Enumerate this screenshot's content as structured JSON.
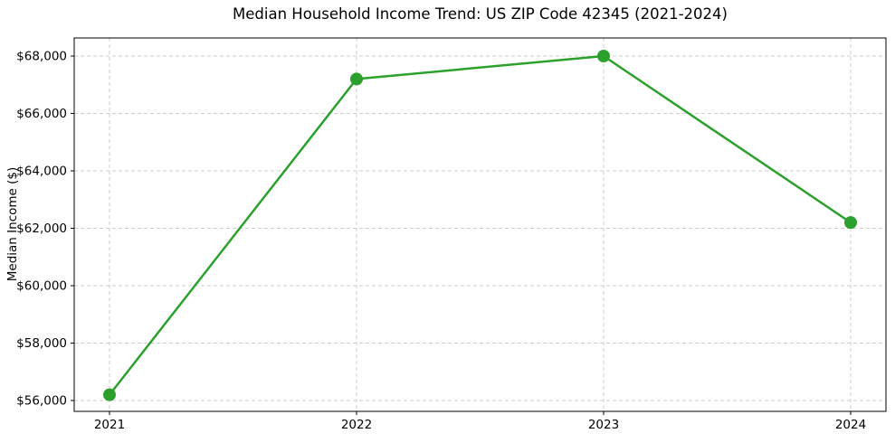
{
  "figure": {
    "background_color": "#ffffff",
    "frame_color": "#000000",
    "grid_color": "#cccccc"
  },
  "chart_data": {
    "type": "line",
    "title": "Median Household Income Trend: US ZIP Code 42345 (2021-2024)",
    "xlabel": "",
    "ylabel": "Median Income ($)",
    "categories": [
      "2021",
      "2022",
      "2023",
      "2024"
    ],
    "series": [
      {
        "name": "Median Household Income",
        "values": [
          56200,
          67200,
          68000,
          62200
        ],
        "color": "#2ca02c",
        "marker": "circle"
      }
    ],
    "y_tick_values": [
      56000,
      58000,
      60000,
      62000,
      64000,
      66000,
      68000
    ],
    "y_tick_labels": [
      "$56,000",
      "$58,000",
      "$60,000",
      "$62,000",
      "$64,000",
      "$66,000",
      "$68,000"
    ],
    "ylim": [
      55622,
      68630
    ],
    "grid": true,
    "grid_style": "dashed",
    "legend": false,
    "frame": true
  }
}
